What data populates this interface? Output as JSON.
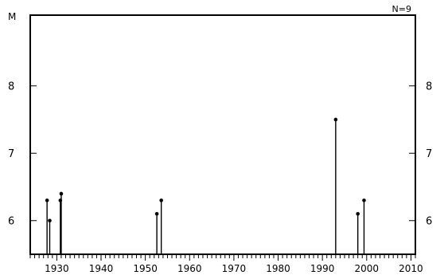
{
  "chart_data": {
    "type": "stem",
    "title": "",
    "count_label": "N=9",
    "ylabel": "M",
    "xlabel": "",
    "xlim": [
      1924,
      2011
    ],
    "ylim": [
      5.5,
      9.05
    ],
    "baseline": 5.5,
    "x_ticks": [
      1930,
      1940,
      1950,
      1960,
      1970,
      1980,
      1990,
      2000,
      2010
    ],
    "x_tick_labels": [
      "1930",
      "1940",
      "1950",
      "1960",
      "1970",
      "1980",
      "1990",
      "2000",
      "2010"
    ],
    "x_minor_step": 1,
    "y_ticks": [
      6,
      7,
      8
    ],
    "y_tick_labels": [
      "6",
      "7",
      "8"
    ],
    "grid": false,
    "legend": "none",
    "points": [
      {
        "x": 1927.8,
        "y": 6.3
      },
      {
        "x": 1928.4,
        "y": 6.0
      },
      {
        "x": 1930.8,
        "y": 6.3
      },
      {
        "x": 1931.0,
        "y": 6.4
      },
      {
        "x": 1952.6,
        "y": 6.1
      },
      {
        "x": 1953.6,
        "y": 6.3
      },
      {
        "x": 1993.0,
        "y": 7.5
      },
      {
        "x": 1998.0,
        "y": 6.1
      },
      {
        "x": 1999.4,
        "y": 6.3
      }
    ]
  }
}
